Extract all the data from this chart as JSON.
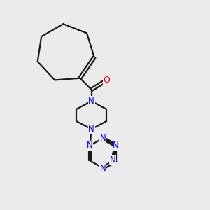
{
  "background_color": "#ebebeb",
  "bond_color": "#1a1a1a",
  "nitrogen_color": "#0000ff",
  "oxygen_color": "#ff0000",
  "bond_width": 1.6,
  "figsize": [
    3.0,
    3.0
  ],
  "dpi": 100,
  "xlim": [
    0,
    10
  ],
  "ylim": [
    0,
    10
  ]
}
